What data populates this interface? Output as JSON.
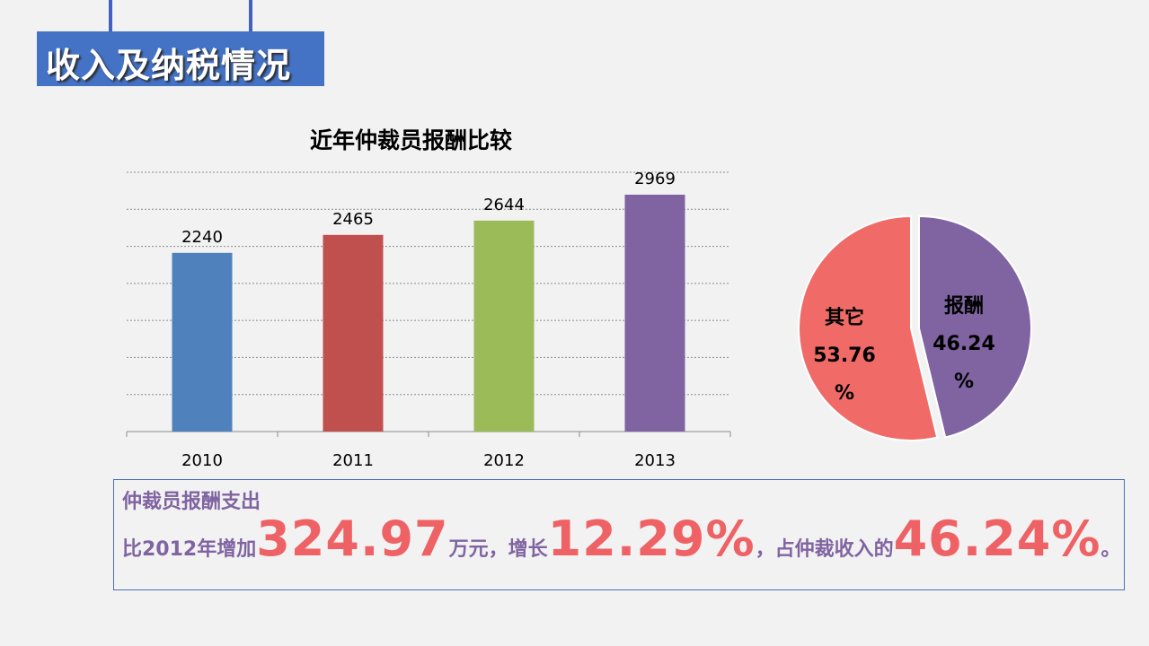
{
  "slide": {
    "title": "收入及纳税情况"
  },
  "summary": {
    "line1": "仲裁员报酬支出",
    "line2_prefix": "比2012年增加",
    "increase_amount": "324.97",
    "unit_text": "万元，增长",
    "growth_rate": "12.29%",
    "share_text": "，占仲裁收入的",
    "share_value": "46.24%",
    "end_mark": "。"
  },
  "colors": {
    "title_bg": "#4472c4",
    "highlight_red": "#ee6265",
    "summary_purple": "#8064a2"
  },
  "chart_data": [
    {
      "type": "bar",
      "title": "近年仲裁员报酬比较",
      "categories": [
        "2010",
        "2011",
        "2012",
        "2013"
      ],
      "values": [
        2240,
        2465,
        2644,
        2969
      ],
      "colors": [
        "#4f81bd",
        "#c0504d",
        "#9bbb59",
        "#8064a2"
      ],
      "ylim": [
        0,
        3250
      ],
      "grid": true,
      "xlabel": "",
      "ylabel": ""
    },
    {
      "type": "pie",
      "slices": [
        {
          "label": "报酬",
          "value_text": "46.24",
          "unit": "%",
          "value": 46.24,
          "color": "#8064a2"
        },
        {
          "label": "其它",
          "value_text": "53.76",
          "unit": "%",
          "value": 53.76,
          "color": "#f06b67"
        }
      ]
    }
  ]
}
